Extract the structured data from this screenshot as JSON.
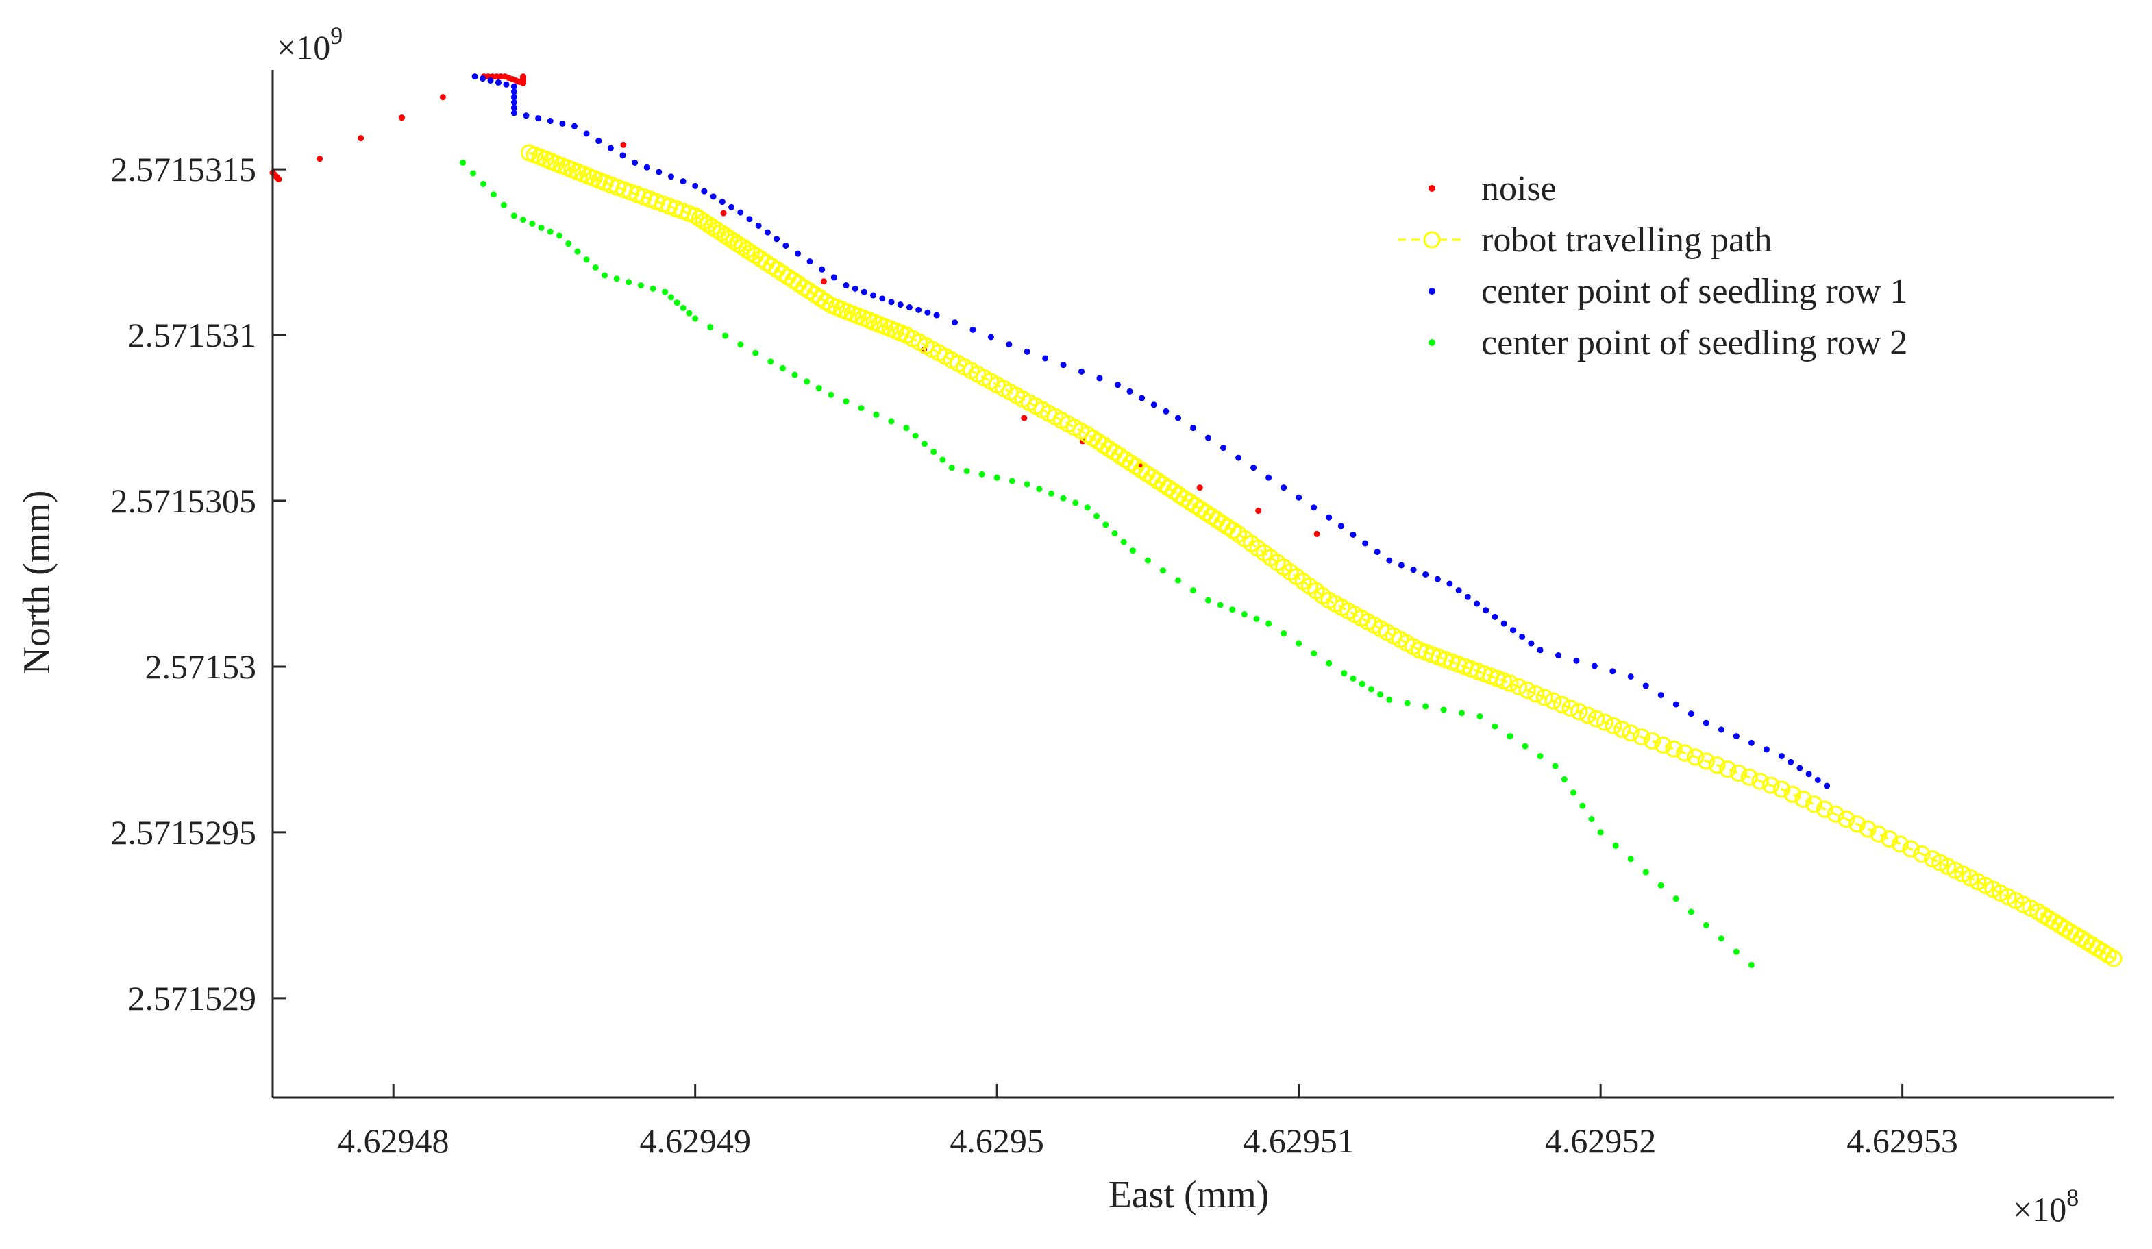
{
  "chart_data": {
    "type": "scatter",
    "xlabel": "East (mm)",
    "ylabel": "North (mm)",
    "x_scale_label": "×10",
    "x_scale_exp": "8",
    "y_scale_label": "×10",
    "y_scale_exp": "9",
    "xlim": [
      4.629476,
      4.629537
    ],
    "ylim": [
      2.5715287,
      2.5715318
    ],
    "x_ticks": [
      4.62948,
      4.62949,
      4.6295,
      4.62951,
      4.62952,
      4.62953
    ],
    "x_tick_labels": [
      "4.62948",
      "4.62949",
      "4.6295",
      "4.62951",
      "4.62952",
      "4.62953"
    ],
    "y_ticks": [
      2.571529,
      2.5715295,
      2.57153,
      2.5715305,
      2.571531,
      2.5715315
    ],
    "y_tick_labels": [
      "2.571529",
      "2.5715295",
      "2.57153",
      "2.5715305",
      "2.571531",
      "2.5715315"
    ],
    "legend_position": "top-right",
    "series": [
      {
        "name": "noise",
        "marker": "dot",
        "color": "#ff0000",
        "points": [
          [
            4.629476,
            2.57153149
          ],
          [
            4.6294762,
            2.57153147
          ],
          [
            4.629483,
            2.57153178
          ],
          [
            4.6294837,
            2.57153178
          ],
          [
            4.6294843,
            2.57153176
          ],
          [
            4.6294843,
            2.57153178
          ],
          [
            4.6295009,
            2.57153075
          ],
          [
            4.6295106,
            2.5715304
          ]
        ]
      },
      {
        "name": "robot travelling path",
        "marker": "circle-line",
        "color": "#ffff00",
        "points": [
          [
            4.6294845,
            2.57153155
          ],
          [
            4.629487,
            2.57153146
          ],
          [
            4.62949,
            2.57153136
          ],
          [
            4.629492,
            2.57153124
          ],
          [
            4.6294945,
            2.57153109
          ],
          [
            4.629497,
            2.571531
          ],
          [
            4.6295,
            2.57153085
          ],
          [
            4.629503,
            2.5715307
          ],
          [
            4.6295055,
            2.57153055
          ],
          [
            4.629508,
            2.5715304
          ],
          [
            4.629511,
            2.5715302
          ],
          [
            4.629514,
            2.57153005
          ],
          [
            4.629517,
            2.57152995
          ],
          [
            4.629521,
            2.5715298
          ],
          [
            4.629526,
            2.57152963
          ],
          [
            4.629531,
            2.57152942
          ],
          [
            4.6295345,
            2.57152926
          ],
          [
            4.629537,
            2.57152912
          ]
        ]
      },
      {
        "name": "center point of seedling row 1",
        "marker": "dot",
        "color": "#0000ff",
        "points": [
          [
            4.6294827,
            2.57153178
          ],
          [
            4.629484,
            2.57153175
          ],
          [
            4.629484,
            2.57153167
          ],
          [
            4.629486,
            2.57153163
          ],
          [
            4.629488,
            2.57153152
          ],
          [
            4.62949,
            2.57153145
          ],
          [
            4.6294915,
            2.57153137
          ],
          [
            4.629493,
            2.57153127
          ],
          [
            4.629495,
            2.57153115
          ],
          [
            4.6294965,
            2.5715311
          ],
          [
            4.629498,
            2.57153106
          ],
          [
            4.629501,
            2.57153095
          ],
          [
            4.629504,
            2.57153085
          ],
          [
            4.629506,
            2.57153075
          ],
          [
            4.6295085,
            2.5715306
          ],
          [
            4.629511,
            2.57153045
          ],
          [
            4.629513,
            2.57153032
          ],
          [
            4.629515,
            2.57153025
          ],
          [
            4.6295165,
            2.57153015
          ],
          [
            4.629518,
            2.57153005
          ],
          [
            4.629521,
            2.57152997
          ],
          [
            4.6295235,
            2.57152983
          ],
          [
            4.629526,
            2.57152973
          ],
          [
            4.6295275,
            2.57152964
          ]
        ]
      },
      {
        "name": "center point of seedling row 2",
        "marker": "dot",
        "color": "#00ff00",
        "points": [
          [
            4.6294823,
            2.57153152
          ],
          [
            4.629484,
            2.57153136
          ],
          [
            4.6294855,
            2.5715313
          ],
          [
            4.629487,
            2.57153118
          ],
          [
            4.629489,
            2.57153113
          ],
          [
            4.62949,
            2.57153105
          ],
          [
            4.6294925,
            2.57153092
          ],
          [
            4.6294945,
            2.57153082
          ],
          [
            4.629497,
            2.57153072
          ],
          [
            4.6294985,
            2.5715306
          ],
          [
            4.629501,
            2.57153055
          ],
          [
            4.629503,
            2.57153048
          ],
          [
            4.6295045,
            2.57153035
          ],
          [
            4.629507,
            2.5715302
          ],
          [
            4.629509,
            2.57153013
          ],
          [
            4.6295115,
            2.57152998
          ],
          [
            4.629513,
            2.5715299
          ],
          [
            4.629516,
            2.57152985
          ],
          [
            4.6295185,
            2.5715297
          ],
          [
            4.62952,
            2.5715295
          ],
          [
            4.6295225,
            2.5715293
          ],
          [
            4.629525,
            2.5715291
          ]
        ]
      }
    ]
  }
}
